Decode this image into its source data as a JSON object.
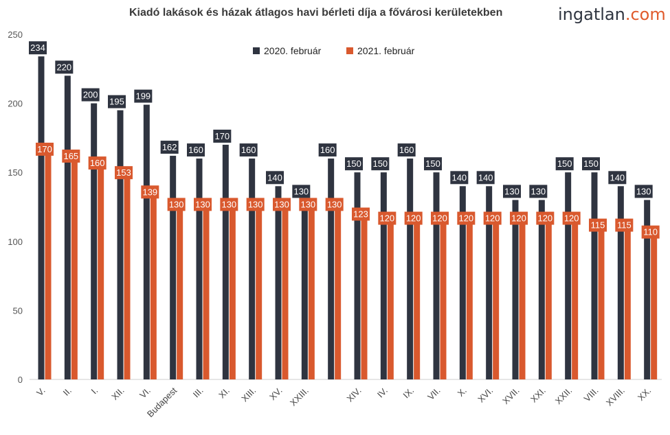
{
  "title": "Kiadó lakások és házak átlagos havi bérleti díja a fővárosi kerületekben",
  "brand": {
    "text": "ingatlan",
    "accent": ".com"
  },
  "colors": {
    "series1": "#2f3440",
    "series2": "#d9592e",
    "axis": "#333333",
    "grid": "#ffffff"
  },
  "chart_data": {
    "type": "bar",
    "title": "Kiadó lakások és házak átlagos havi bérleti díja a fővárosi kerületekben",
    "xlabel": "",
    "ylabel": "",
    "ylim": [
      0,
      250
    ],
    "yticks": [
      0,
      50,
      100,
      150,
      200,
      250
    ],
    "legend_position": "top-center",
    "categories": [
      "V.",
      "II.",
      "I.",
      "XII.",
      "VI.",
      "Budapest",
      "III.",
      "XI.",
      "XIII.",
      "XV.",
      "XXIII.",
      "",
      "XIV.",
      "IV.",
      "IX.",
      "VII.",
      "X.",
      "XVI.",
      "XVII.",
      "XXI.",
      "XXII.",
      "VIII.",
      "XVIII.",
      "XX."
    ],
    "series": [
      {
        "name": "2020. február",
        "values": [
          234,
          220,
          200,
          195,
          199,
          162,
          160,
          170,
          160,
          140,
          130,
          160,
          150,
          150,
          160,
          150,
          140,
          140,
          130,
          130,
          150,
          150,
          140,
          130
        ]
      },
      {
        "name": "2021. február",
        "values": [
          170,
          165,
          160,
          153,
          139,
          130,
          130,
          130,
          130,
          130,
          130,
          130,
          123,
          120,
          120,
          120,
          120,
          120,
          120,
          120,
          120,
          115,
          115,
          110
        ]
      }
    ]
  }
}
